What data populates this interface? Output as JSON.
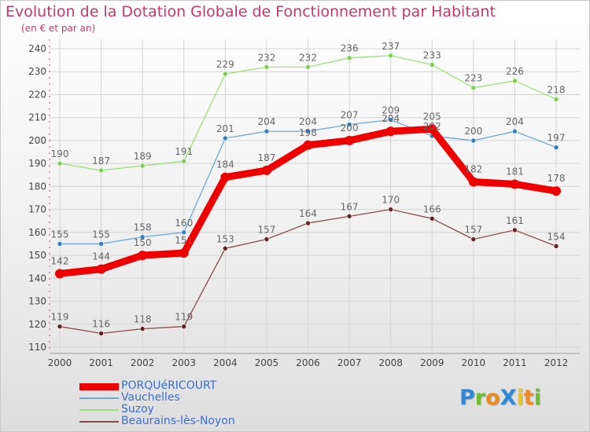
{
  "title": "Evolution de la Dotation Globale de Fonctionnement par Habitant",
  "subtitle": "(en € et par an)",
  "brand": {
    "text": "ProXiti",
    "letters": [
      "P",
      "r",
      "o",
      "X",
      "i",
      "t",
      "i"
    ],
    "colors": [
      "#2e8ad8",
      "#6fbf2a",
      "#f08a1c",
      "#2e8ad8",
      "#e8c81c",
      "#f08a1c",
      "#6fbf2a"
    ]
  },
  "colors": {
    "title": "#c8366a",
    "legend_text": "#3b6fd4",
    "grid": "#d4d4d4",
    "axis": "#999999"
  },
  "chart_data": {
    "type": "line",
    "title": "Evolution de la Dotation Globale de Fonctionnement par Habitant",
    "subtitle": "(en € et par an)",
    "xlabel": "",
    "ylabel": "",
    "x": [
      "2000",
      "2001",
      "2002",
      "2003",
      "2004",
      "2005",
      "2006",
      "2007",
      "2008",
      "2009",
      "2010",
      "2011",
      "2012"
    ],
    "ylim": [
      110,
      240
    ],
    "yticks": [
      110,
      120,
      130,
      140,
      150,
      160,
      170,
      180,
      190,
      200,
      210,
      220,
      230,
      240
    ],
    "grid": true,
    "legend_position": "bottom-left",
    "series": [
      {
        "name": "PORQUéRICOURT",
        "color": "#ee0000",
        "marker": "#ee0000",
        "emphasis": true,
        "values": [
          142,
          144,
          150,
          151,
          184,
          187,
          198,
          200,
          204,
          205,
          182,
          181,
          178
        ]
      },
      {
        "name": "Vauchelles",
        "color": "#6fa6d8",
        "marker": "#2f7fc6",
        "emphasis": false,
        "values": [
          155,
          155,
          158,
          160,
          201,
          204,
          204,
          207,
          209,
          202,
          200,
          204,
          197
        ]
      },
      {
        "name": "Suzoy",
        "color": "#9de07a",
        "marker": "#7fd04e",
        "emphasis": false,
        "values": [
          190,
          187,
          189,
          191,
          229,
          232,
          232,
          236,
          237,
          233,
          223,
          226,
          218
        ]
      },
      {
        "name": "Beaurains-lès-Noyon",
        "color": "#8a4a4a",
        "marker": "#6a1f1f",
        "emphasis": false,
        "values": [
          119,
          116,
          118,
          119,
          153,
          157,
          164,
          167,
          170,
          166,
          157,
          161,
          154
        ]
      }
    ]
  }
}
